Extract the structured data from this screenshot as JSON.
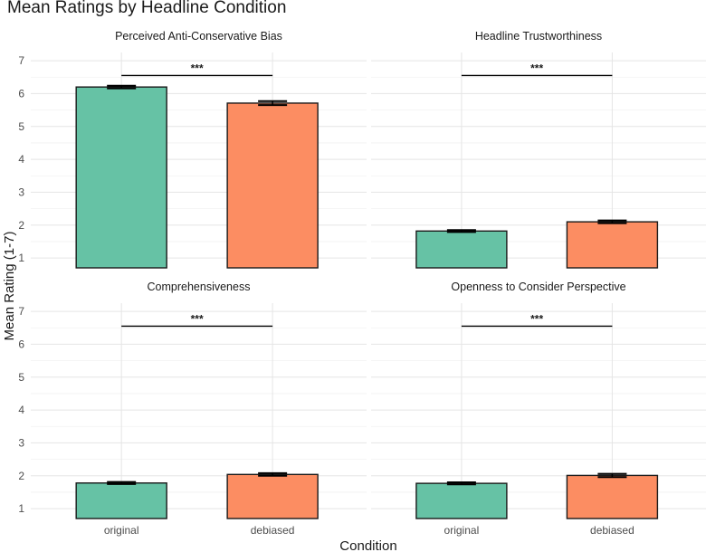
{
  "chart_data": {
    "type": "bar",
    "title": "Mean Ratings by Headline Condition",
    "xlabel": "Condition",
    "ylabel": "Mean Rating (1-7)",
    "categories": [
      "original",
      "debiased"
    ],
    "ylim": [
      0.7,
      7.25
    ],
    "yticks": [
      "1",
      "2",
      "3",
      "4",
      "5",
      "6",
      "7"
    ],
    "grid": true,
    "colors": {
      "original": "#66c2a5",
      "debiased": "#fc8d62"
    },
    "panels": [
      {
        "name": "Perceived Anti-Conservative Bias",
        "values": [
          6.2,
          5.71
        ],
        "errors": [
          0.04,
          0.06
        ],
        "significance": "***"
      },
      {
        "name": "Headline Trustworthiness",
        "values": [
          1.82,
          2.1
        ],
        "errors": [
          0.03,
          0.04
        ],
        "significance": "***"
      },
      {
        "name": "Comprehensiveness",
        "values": [
          1.78,
          2.04
        ],
        "errors": [
          0.03,
          0.04
        ],
        "significance": "***"
      },
      {
        "name": "Openness to Consider Perspective",
        "values": [
          1.77,
          2.01
        ],
        "errors": [
          0.03,
          0.05
        ],
        "significance": "***"
      }
    ]
  }
}
